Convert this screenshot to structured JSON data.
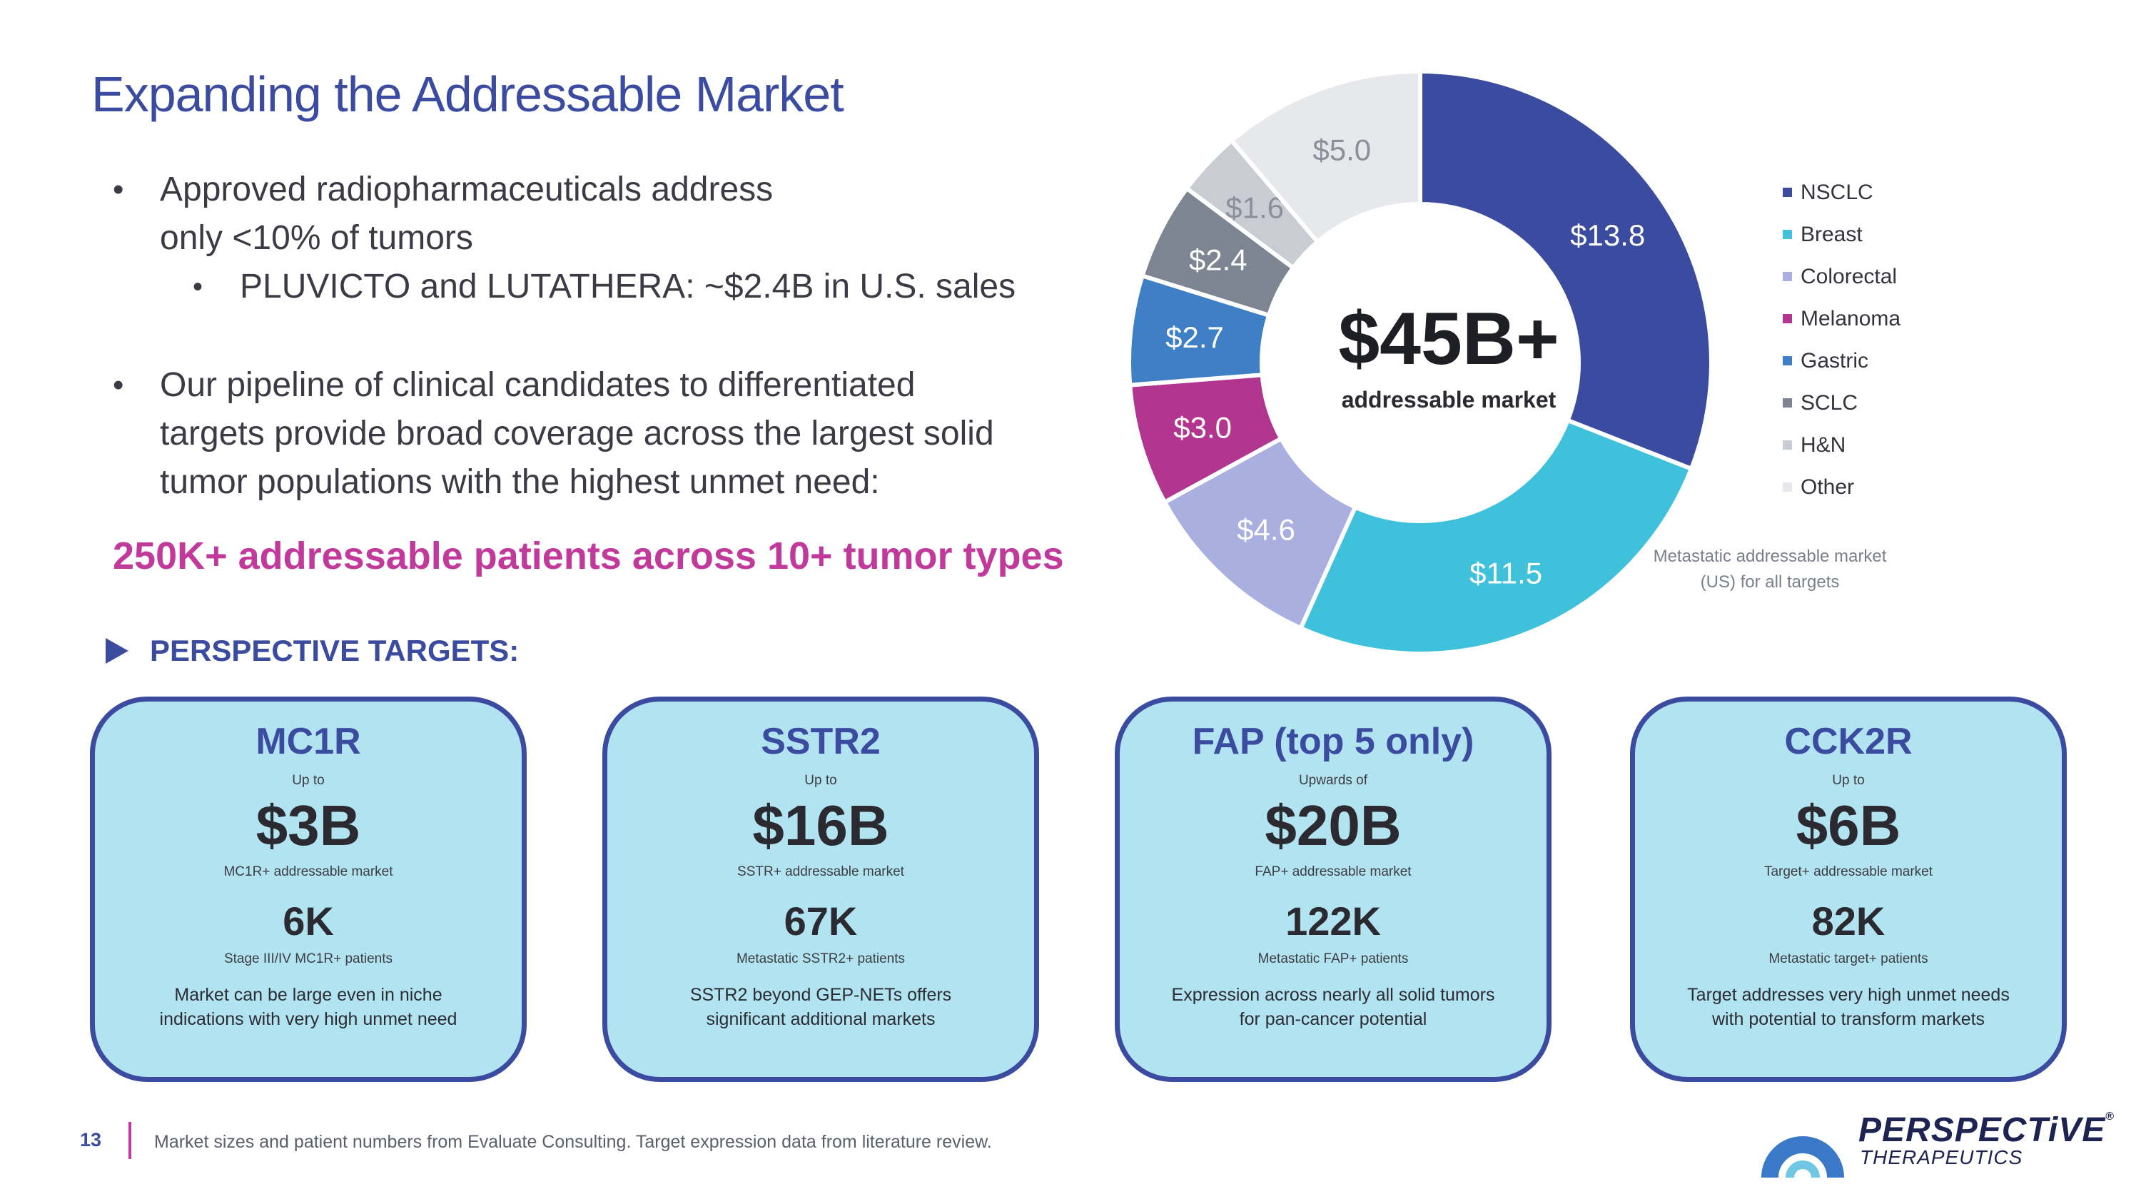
{
  "slide": {
    "title": "Expanding the Addressable Market",
    "bullets": [
      {
        "lines": [
          "Approved radiopharmaceuticals address",
          "only <10% of tumors"
        ]
      },
      {
        "lines": [
          "Our pipeline of clinical candidates to differentiated",
          "targets provide broad coverage across the largest solid",
          "tumor populations with the highest unmet need:"
        ]
      }
    ],
    "sub_bullet": "PLUVICTO and LUTATHERA: ~$2.4B in U.S. sales",
    "highlight": "250K+ addressable patients across 10+ tumor types",
    "targets_heading": "PERSPECTIVE TARGETS:",
    "footer_number": "13",
    "footer_text": "Market sizes and patient numbers from Evaluate Consulting. Target expression data from literature review."
  },
  "cards": [
    {
      "title": "MC1R",
      "pre": "Up to",
      "amount": "$3B",
      "market_label": "MC1R+ addressable market",
      "patients": "6K",
      "patients_label": "Stage III/IV MC1R+ patients",
      "note": "Market can be large even in niche indications with very high unmet need"
    },
    {
      "title": "SSTR2",
      "pre": "Up to",
      "amount": "$16B",
      "market_label": "SSTR+ addressable market",
      "patients": "67K",
      "patients_label": "Metastatic SSTR2+ patients",
      "note": "SSTR2 beyond GEP-NETs offers significant additional markets"
    },
    {
      "title": "FAP (top 5 only)",
      "pre": "Upwards of",
      "amount": "$20B",
      "market_label": "FAP+ addressable market",
      "patients": "122K",
      "patients_label": "Metastatic FAP+ patients",
      "note": "Expression across nearly all solid tumors for pan-cancer potential"
    },
    {
      "title": "CCK2R",
      "pre": "Up to",
      "amount": "$6B",
      "market_label": "Target+ addressable market",
      "patients": "82K",
      "patients_label": "Metastatic target+ patients",
      "note": "Target addresses very high unmet needs with potential to transform markets"
    }
  ],
  "chart_data": {
    "type": "pie",
    "variant": "donut",
    "center_value": "$45B+",
    "center_label": "addressable market",
    "note": "Metastatic addressable market (US) for all targets",
    "legend_position": "right",
    "slices": [
      {
        "label": "NSCLC",
        "value": 13.8,
        "display": "$13.8",
        "color": "#3b4ba0",
        "text_color": "#ffffff"
      },
      {
        "label": "Breast",
        "value": 11.5,
        "display": "$11.5",
        "color": "#3fc1dc",
        "text_color": "#ffffff"
      },
      {
        "label": "Colorectal",
        "value": 4.6,
        "display": "$4.6",
        "color": "#a9b0e0",
        "text_color": "#ffffff"
      },
      {
        "label": "Melanoma",
        "value": 3.0,
        "display": "$3.0",
        "color": "#b2368f",
        "text_color": "#ffffff"
      },
      {
        "label": "Gastric",
        "value": 2.7,
        "display": "$2.7",
        "color": "#3f7fc6",
        "text_color": "#ffffff"
      },
      {
        "label": "SCLC",
        "value": 2.4,
        "display": "$2.4",
        "color": "#7c8591",
        "text_color": "#ffffff"
      },
      {
        "label": "H&N",
        "value": 1.6,
        "display": "$1.6",
        "color": "#c9ccd3",
        "text_color": "#8a8f99"
      },
      {
        "label": "Other",
        "value": 5.0,
        "display": "$5.0",
        "color": "#e7e8ec",
        "text_color": "#8a8f99"
      }
    ]
  },
  "logo": {
    "name": "PERSPECTiVE",
    "tm": "®",
    "sub": "THERAPEUTICS"
  }
}
